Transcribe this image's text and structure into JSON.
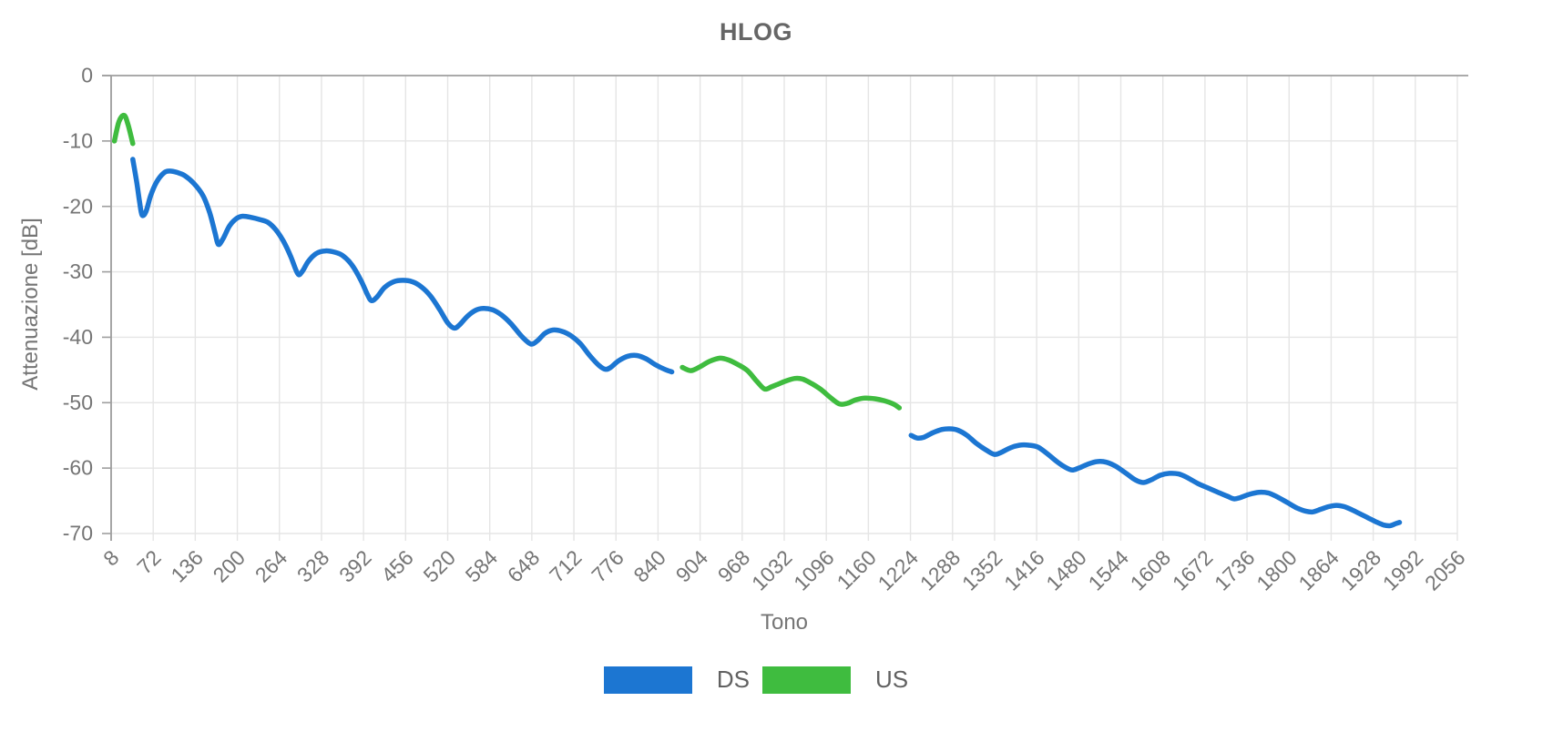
{
  "chart_data": {
    "type": "line",
    "title": "HLOG",
    "xlabel": "Tono",
    "ylabel": "Attenuazione [dB]",
    "xlim": [
      8,
      2056
    ],
    "ylim": [
      -70,
      0
    ],
    "xticks": [
      8,
      72,
      136,
      200,
      264,
      328,
      392,
      456,
      520,
      584,
      648,
      712,
      776,
      840,
      904,
      968,
      1032,
      1096,
      1160,
      1224,
      1288,
      1352,
      1416,
      1480,
      1544,
      1608,
      1672,
      1736,
      1800,
      1864,
      1928,
      1992,
      2056
    ],
    "yticks": [
      0,
      -10,
      -20,
      -30,
      -40,
      -50,
      -60,
      -70
    ],
    "grid": true,
    "grid_color": "#e5e5e5",
    "axis_color": "#9e9e9e",
    "legend_position": "bottom",
    "series": [
      {
        "name": "DS",
        "color": "#1c76d2",
        "segments": [
          [
            [
              41,
              -12.8
            ],
            [
              47,
              -16.3
            ],
            [
              51,
              -19.1
            ],
            [
              55,
              -21.3
            ],
            [
              61,
              -20.8
            ],
            [
              68,
              -18.4
            ],
            [
              77,
              -16.3
            ],
            [
              88,
              -14.9
            ],
            [
              97,
              -14.6
            ],
            [
              108,
              -14.8
            ],
            [
              120,
              -15.3
            ],
            [
              134,
              -16.5
            ],
            [
              148,
              -18.4
            ],
            [
              158,
              -21.0
            ],
            [
              166,
              -24.0
            ],
            [
              171,
              -25.8
            ],
            [
              178,
              -25.0
            ],
            [
              188,
              -23.0
            ],
            [
              198,
              -21.9
            ],
            [
              208,
              -21.5
            ],
            [
              222,
              -21.7
            ],
            [
              234,
              -22.0
            ],
            [
              246,
              -22.4
            ],
            [
              258,
              -23.5
            ],
            [
              270,
              -25.3
            ],
            [
              281,
              -27.6
            ],
            [
              292,
              -30.3
            ],
            [
              299,
              -29.9
            ],
            [
              308,
              -28.4
            ],
            [
              320,
              -27.2
            ],
            [
              334,
              -26.8
            ],
            [
              348,
              -27.0
            ],
            [
              360,
              -27.5
            ],
            [
              374,
              -28.9
            ],
            [
              388,
              -31.3
            ],
            [
              398,
              -33.5
            ],
            [
              404,
              -34.4
            ],
            [
              412,
              -33.9
            ],
            [
              424,
              -32.4
            ],
            [
              438,
              -31.5
            ],
            [
              452,
              -31.3
            ],
            [
              466,
              -31.5
            ],
            [
              480,
              -32.3
            ],
            [
              494,
              -33.7
            ],
            [
              508,
              -35.8
            ],
            [
              520,
              -37.8
            ],
            [
              530,
              -38.6
            ],
            [
              538,
              -38.1
            ],
            [
              550,
              -36.8
            ],
            [
              562,
              -35.9
            ],
            [
              574,
              -35.6
            ],
            [
              588,
              -35.8
            ],
            [
              602,
              -36.6
            ],
            [
              616,
              -37.9
            ],
            [
              632,
              -39.8
            ],
            [
              644,
              -40.9
            ],
            [
              650,
              -41.0
            ],
            [
              658,
              -40.4
            ],
            [
              668,
              -39.4
            ],
            [
              680,
              -38.9
            ],
            [
              694,
              -39.1
            ],
            [
              708,
              -39.8
            ],
            [
              722,
              -41.0
            ],
            [
              736,
              -42.8
            ],
            [
              750,
              -44.3
            ],
            [
              760,
              -44.9
            ],
            [
              768,
              -44.6
            ],
            [
              780,
              -43.6
            ],
            [
              794,
              -42.9
            ],
            [
              808,
              -42.8
            ],
            [
              822,
              -43.3
            ],
            [
              836,
              -44.2
            ],
            [
              850,
              -44.9
            ],
            [
              861,
              -45.3
            ]
          ],
          [
            [
              1225,
              -55.0
            ],
            [
              1234,
              -55.4
            ],
            [
              1244,
              -55.3
            ],
            [
              1258,
              -54.6
            ],
            [
              1272,
              -54.1
            ],
            [
              1284,
              -54.0
            ],
            [
              1296,
              -54.2
            ],
            [
              1310,
              -55.0
            ],
            [
              1324,
              -56.2
            ],
            [
              1340,
              -57.3
            ],
            [
              1352,
              -57.9
            ],
            [
              1362,
              -57.6
            ],
            [
              1376,
              -56.9
            ],
            [
              1390,
              -56.5
            ],
            [
              1404,
              -56.5
            ],
            [
              1418,
              -56.8
            ],
            [
              1432,
              -57.8
            ],
            [
              1448,
              -59.1
            ],
            [
              1460,
              -59.9
            ],
            [
              1470,
              -60.3
            ],
            [
              1480,
              -60.0
            ],
            [
              1494,
              -59.4
            ],
            [
              1508,
              -59.0
            ],
            [
              1522,
              -59.1
            ],
            [
              1536,
              -59.7
            ],
            [
              1552,
              -60.8
            ],
            [
              1566,
              -61.8
            ],
            [
              1578,
              -62.2
            ],
            [
              1590,
              -61.8
            ],
            [
              1604,
              -61.1
            ],
            [
              1618,
              -60.8
            ],
            [
              1632,
              -60.9
            ],
            [
              1646,
              -61.5
            ],
            [
              1662,
              -62.4
            ],
            [
              1678,
              -63.1
            ],
            [
              1694,
              -63.8
            ],
            [
              1706,
              -64.3
            ],
            [
              1716,
              -64.7
            ],
            [
              1726,
              -64.5
            ],
            [
              1740,
              -64.0
            ],
            [
              1754,
              -63.7
            ],
            [
              1768,
              -63.8
            ],
            [
              1782,
              -64.4
            ],
            [
              1798,
              -65.3
            ],
            [
              1812,
              -66.1
            ],
            [
              1826,
              -66.6
            ],
            [
              1836,
              -66.7
            ],
            [
              1848,
              -66.3
            ],
            [
              1860,
              -65.9
            ],
            [
              1872,
              -65.7
            ],
            [
              1884,
              -65.9
            ],
            [
              1896,
              -66.4
            ],
            [
              1908,
              -67.0
            ],
            [
              1920,
              -67.6
            ],
            [
              1932,
              -68.2
            ],
            [
              1944,
              -68.7
            ],
            [
              1954,
              -68.8
            ],
            [
              1962,
              -68.5
            ],
            [
              1968,
              -68.3
            ]
          ]
        ]
      },
      {
        "name": "US",
        "color": "#3fbc3f",
        "segments": [
          [
            [
              13,
              -10.0
            ],
            [
              20,
              -7.0
            ],
            [
              28,
              -6.1
            ],
            [
              34,
              -7.6
            ],
            [
              41,
              -10.4
            ]
          ],
          [
            [
              877,
              -44.6
            ],
            [
              890,
              -45.1
            ],
            [
              904,
              -44.5
            ],
            [
              918,
              -43.7
            ],
            [
              934,
              -43.2
            ],
            [
              948,
              -43.5
            ],
            [
              962,
              -44.2
            ],
            [
              976,
              -45.1
            ],
            [
              990,
              -46.7
            ],
            [
              1002,
              -47.9
            ],
            [
              1012,
              -47.6
            ],
            [
              1022,
              -47.2
            ],
            [
              1034,
              -46.7
            ],
            [
              1048,
              -46.3
            ],
            [
              1060,
              -46.4
            ],
            [
              1074,
              -47.1
            ],
            [
              1088,
              -48.0
            ],
            [
              1102,
              -49.2
            ],
            [
              1116,
              -50.2
            ],
            [
              1128,
              -50.1
            ],
            [
              1140,
              -49.6
            ],
            [
              1154,
              -49.3
            ],
            [
              1170,
              -49.4
            ],
            [
              1184,
              -49.7
            ],
            [
              1198,
              -50.2
            ],
            [
              1207,
              -50.8
            ]
          ]
        ]
      }
    ]
  }
}
